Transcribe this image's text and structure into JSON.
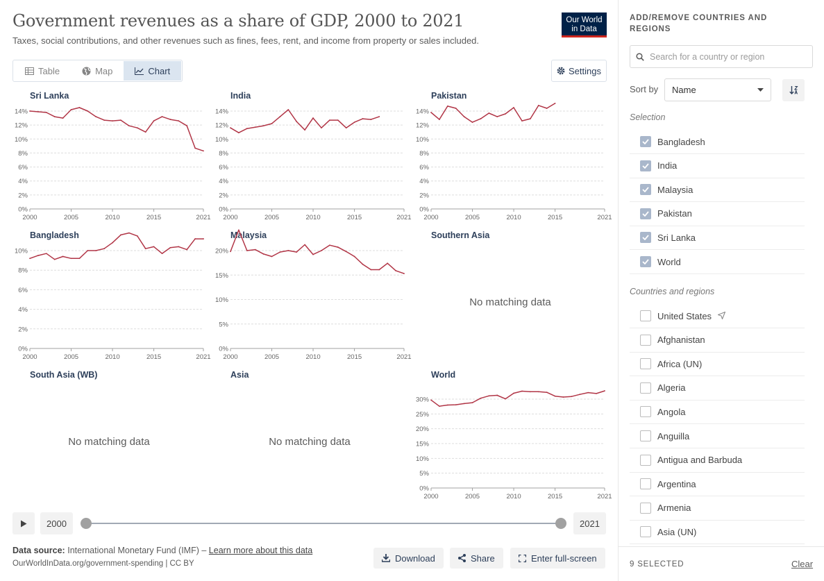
{
  "header": {
    "title": "Government revenues as a share of GDP, 2000 to 2021",
    "subtitle": "Taxes, social contributions, and other revenues such as fines, fees, rent, and income from property or sales included.",
    "logo_line1": "Our World",
    "logo_line2": "in Data"
  },
  "tabs": [
    {
      "label": "Table",
      "icon": "table-icon"
    },
    {
      "label": "Map",
      "icon": "globe-icon"
    },
    {
      "label": "Chart",
      "icon": "line-chart-icon",
      "active": true
    }
  ],
  "settings_label": "Settings",
  "no_data_text": "No matching data",
  "colors": {
    "line": "#b13546",
    "axis": "#a1a1a1",
    "grid": "#dddddd",
    "title": "#2d3f5a",
    "accent": "#a9b7cb"
  },
  "chart_data": [
    {
      "type": "line",
      "title": "Sri Lanka",
      "x_ticks": [
        "2000",
        "2005",
        "2010",
        "2015",
        "2021"
      ],
      "y_ticks": [
        "0%",
        "2%",
        "4%",
        "6%",
        "8%",
        "10%",
        "12%",
        "14%"
      ],
      "ylim": [
        0,
        14
      ],
      "x": [
        2000,
        2001,
        2002,
        2003,
        2004,
        2005,
        2006,
        2007,
        2008,
        2009,
        2010,
        2011,
        2012,
        2013,
        2014,
        2015,
        2016,
        2017,
        2018,
        2019,
        2020,
        2021
      ],
      "y": [
        14.0,
        13.9,
        13.8,
        13.2,
        13.0,
        14.2,
        14.5,
        14.0,
        13.2,
        12.7,
        12.6,
        12.7,
        11.9,
        11.6,
        11.0,
        12.6,
        13.2,
        12.8,
        12.6,
        11.9,
        8.7,
        8.3
      ]
    },
    {
      "type": "line",
      "title": "India",
      "x_ticks": [
        "2000",
        "2005",
        "2010",
        "2015",
        "2021"
      ],
      "y_ticks": [
        "0%",
        "2%",
        "4%",
        "6%",
        "8%",
        "10%",
        "12%",
        "14%"
      ],
      "ylim": [
        0,
        14
      ],
      "x": [
        2000,
        2001,
        2002,
        2003,
        2004,
        2005,
        2006,
        2007,
        2008,
        2009,
        2010,
        2011,
        2012,
        2013,
        2014,
        2015,
        2016,
        2017,
        2018
      ],
      "y": [
        11.6,
        10.9,
        11.5,
        11.7,
        11.9,
        12.2,
        13.2,
        14.2,
        12.5,
        11.3,
        13.0,
        11.6,
        12.7,
        12.7,
        11.6,
        12.4,
        12.9,
        12.8,
        13.2
      ]
    },
    {
      "type": "line",
      "title": "Pakistan",
      "x_ticks": [
        "2000",
        "2005",
        "2010",
        "2015",
        "2021"
      ],
      "y_ticks": [
        "0%",
        "2%",
        "4%",
        "6%",
        "8%",
        "10%",
        "12%",
        "14%"
      ],
      "ylim": [
        0,
        14
      ],
      "x": [
        2000,
        2001,
        2002,
        2003,
        2004,
        2005,
        2006,
        2007,
        2008,
        2009,
        2010,
        2011,
        2012,
        2013,
        2014,
        2015
      ],
      "y": [
        13.8,
        12.8,
        14.7,
        14.4,
        13.2,
        12.4,
        12.9,
        13.7,
        13.2,
        13.6,
        14.5,
        12.6,
        12.9,
        14.8,
        14.4,
        15.1
      ]
    },
    {
      "type": "line",
      "title": "Bangladesh",
      "x_ticks": [
        "2000",
        "2005",
        "2010",
        "2015",
        "2021"
      ],
      "y_ticks": [
        "0%",
        "2%",
        "4%",
        "6%",
        "8%",
        "10%"
      ],
      "ylim": [
        0,
        11
      ],
      "x": [
        2000,
        2001,
        2002,
        2003,
        2004,
        2005,
        2006,
        2007,
        2008,
        2009,
        2010,
        2011,
        2012,
        2013,
        2014,
        2015,
        2016,
        2017,
        2018,
        2019,
        2020,
        2021
      ],
      "y": [
        9.2,
        9.5,
        9.7,
        9.1,
        9.4,
        9.2,
        9.2,
        10.0,
        10.0,
        10.2,
        10.8,
        11.6,
        11.8,
        11.5,
        10.2,
        10.4,
        9.7,
        10.3,
        10.4,
        10.1,
        11.2,
        11.2
      ]
    },
    {
      "type": "line",
      "title": "Malaysia",
      "x_ticks": [
        "2000",
        "2005",
        "2010",
        "2015",
        "2021"
      ],
      "y_ticks": [
        "0%",
        "5%",
        "10%",
        "15%",
        "20%"
      ],
      "ylim": [
        0,
        22
      ],
      "x": [
        2000,
        2001,
        2002,
        2003,
        2004,
        2005,
        2006,
        2007,
        2008,
        2009,
        2010,
        2011,
        2012,
        2013,
        2014,
        2015,
        2016,
        2017,
        2018,
        2019,
        2020,
        2021
      ],
      "y": [
        19.8,
        24.2,
        20.0,
        20.2,
        19.3,
        18.8,
        19.7,
        20.0,
        19.7,
        21.2,
        19.2,
        20.0,
        21.1,
        20.7,
        19.8,
        18.8,
        17.2,
        16.1,
        16.1,
        17.4,
        15.9,
        15.3
      ]
    },
    {
      "type": "line",
      "title": "Southern Asia",
      "no_data": true
    },
    {
      "type": "line",
      "title": "South Asia (WB)",
      "no_data": true
    },
    {
      "type": "line",
      "title": "Asia",
      "no_data": true
    },
    {
      "type": "line",
      "title": "World",
      "x_ticks": [
        "2000",
        "2005",
        "2010",
        "2015",
        "2021"
      ],
      "y_ticks": [
        "0%",
        "5%",
        "10%",
        "15%",
        "20%",
        "25%",
        "30%"
      ],
      "ylim": [
        0,
        32
      ],
      "x": [
        2000,
        2001,
        2002,
        2003,
        2004,
        2005,
        2006,
        2007,
        2008,
        2009,
        2010,
        2011,
        2012,
        2013,
        2014,
        2015,
        2016,
        2017,
        2018,
        2019,
        2020,
        2021
      ],
      "y": [
        29.7,
        27.6,
        28.0,
        28.1,
        28.5,
        28.8,
        30.3,
        31.1,
        31.3,
        30.1,
        32.0,
        32.7,
        32.5,
        32.5,
        32.3,
        31.0,
        30.7,
        30.9,
        31.6,
        32.2,
        31.9,
        32.8
      ]
    }
  ],
  "timeline": {
    "start": "2000",
    "end": "2021"
  },
  "footer": {
    "source_label": "Data source:",
    "source_text": "International Monetary Fund (IMF) –",
    "learn_more": "Learn more about this data",
    "url_line": "OurWorldInData.org/government-spending | CC BY",
    "download": "Download",
    "share": "Share",
    "fullscreen": "Enter full-screen"
  },
  "sidebar": {
    "heading": "ADD/REMOVE COUNTRIES AND REGIONS",
    "search_placeholder": "Search for a country or region",
    "sort_label": "Sort by",
    "sort_value": "Name",
    "selection_label": "Selection",
    "selected": [
      "Bangladesh",
      "India",
      "Malaysia",
      "Pakistan",
      "Sri Lanka",
      "World"
    ],
    "others_label": "Countries and regions",
    "others": [
      "United States",
      "Afghanistan",
      "Africa (UN)",
      "Algeria",
      "Angola",
      "Anguilla",
      "Antigua and Barbuda",
      "Argentina",
      "Armenia",
      "Asia (UN)"
    ],
    "selected_count": "9 SELECTED",
    "clear": "Clear"
  }
}
